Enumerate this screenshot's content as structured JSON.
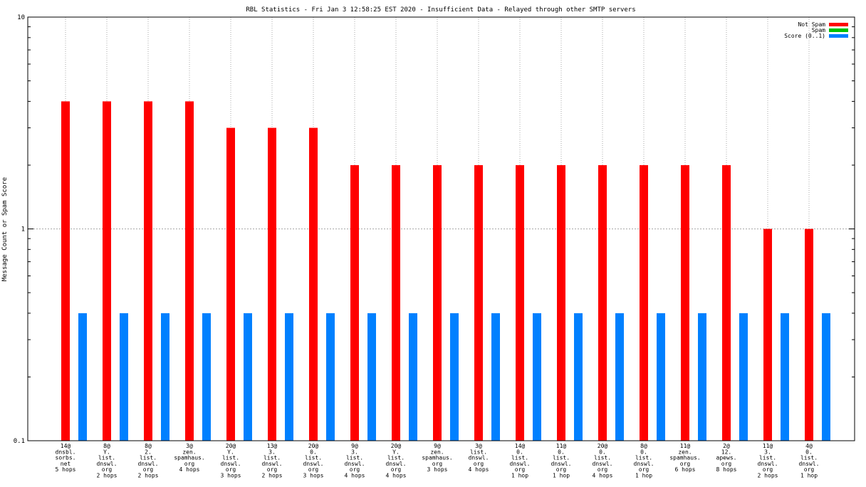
{
  "chart_data": {
    "type": "bar",
    "title": "RBL Statistics - Fri Jan  3 12:58:25 EST 2020 - Insufficient Data - Relayed through other SMTP servers",
    "xlabel": "",
    "ylabel": "Message Count or Spam Score",
    "yscale": "log",
    "ylim": [
      0.1,
      10
    ],
    "yticks": [
      "10",
      "1",
      "0.1"
    ],
    "grid": true,
    "legend_position": "top-right",
    "categories": [
      [
        "14@",
        "dnsbl.",
        "sorbs.",
        "net",
        "5 hops"
      ],
      [
        "8@",
        "Y.",
        "list.",
        "dnswl.",
        "org",
        "2 hops"
      ],
      [
        "8@",
        "2.",
        "list.",
        "dnswl.",
        "org",
        "2 hops"
      ],
      [
        "3@",
        "zen.",
        "spamhaus.",
        "org",
        "4 hops"
      ],
      [
        "20@",
        "Y.",
        "list.",
        "dnswl.",
        "org",
        "3 hops"
      ],
      [
        "13@",
        "3.",
        "list.",
        "dnswl.",
        "org",
        "2 hops"
      ],
      [
        "20@",
        "0.",
        "list.",
        "dnswl.",
        "org",
        "3 hops"
      ],
      [
        "9@",
        "3.",
        "list.",
        "dnswl.",
        "org",
        "4 hops"
      ],
      [
        "20@",
        "Y.",
        "list.",
        "dnswl.",
        "org",
        "4 hops"
      ],
      [
        "9@",
        "zen.",
        "spamhaus.",
        "org",
        "3 hops"
      ],
      [
        "3@",
        "list.",
        "dnswl.",
        "org",
        "4 hops"
      ],
      [
        "14@",
        "0.",
        "list.",
        "dnswl.",
        "org",
        "1 hop"
      ],
      [
        "11@",
        "0.",
        "list.",
        "dnswl.",
        "org",
        "1 hop"
      ],
      [
        "20@",
        "0.",
        "list.",
        "dnswl.",
        "org",
        "4 hops"
      ],
      [
        "8@",
        "0.",
        "list.",
        "dnswl.",
        "org",
        "1 hop"
      ],
      [
        "11@",
        "zen.",
        "spamhaus.",
        "org",
        "6 hops"
      ],
      [
        "2@",
        "12.",
        "apews.",
        "org",
        "8 hops"
      ],
      [
        "11@",
        "3.",
        "list.",
        "dnswl.",
        "org",
        "2 hops"
      ],
      [
        "4@",
        "0.",
        "list.",
        "dnswl.",
        "org",
        "1 hop"
      ]
    ],
    "series": [
      {
        "name": "Not Spam",
        "color": "#ff0000",
        "values": [
          4,
          4,
          4,
          4,
          3,
          3,
          3,
          2,
          2,
          2,
          2,
          2,
          2,
          2,
          2,
          2,
          2,
          1,
          1
        ]
      },
      {
        "name": "Spam",
        "color": "#00c000",
        "values": [
          0,
          0,
          0,
          0,
          0,
          0,
          0,
          0,
          0,
          0,
          0,
          0,
          0,
          0,
          0,
          0,
          0,
          0,
          0
        ]
      },
      {
        "name": "Score (0..1)",
        "color": "#0080ff",
        "values": [
          0.4,
          0.4,
          0.4,
          0.4,
          0.4,
          0.4,
          0.4,
          0.4,
          0.4,
          0.4,
          0.4,
          0.4,
          0.4,
          0.4,
          0.4,
          0.4,
          0.4,
          0.4,
          0.4
        ]
      }
    ]
  }
}
